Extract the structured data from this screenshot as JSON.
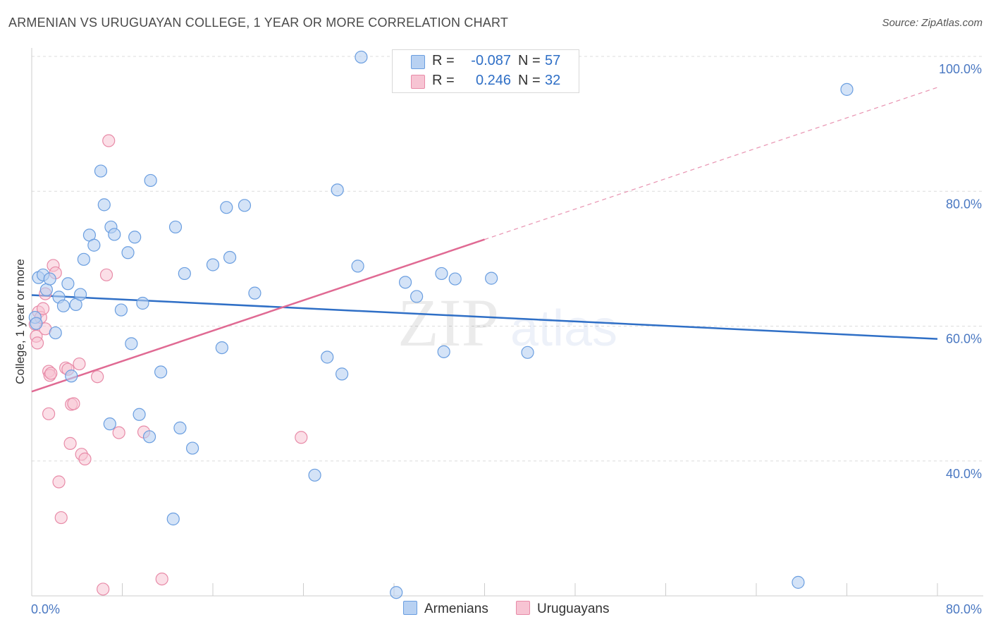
{
  "title": "ARMENIAN VS URUGUAYAN COLLEGE, 1 YEAR OR MORE CORRELATION CHART",
  "source": "Source: ZipAtlas.com",
  "watermark": {
    "zip": "ZIP",
    "atlas": "atlas"
  },
  "legend": {
    "r_label": "R =",
    "n_label": "N =",
    "armenians": {
      "r": "-0.087",
      "n": "57"
    },
    "uruguayans": {
      "r": "0.246",
      "n": "32"
    }
  },
  "colors": {
    "armenians_fill": "#b8d1f2",
    "armenians_stroke": "#6a9ee0",
    "armenians_line": "#2f6fc6",
    "uruguayans_fill": "#f7c4d3",
    "uruguayans_stroke": "#e88ba8",
    "uruguayans_line": "#e06a93",
    "tick_label": "#4a78c2"
  },
  "chart_data": {
    "type": "scatter",
    "title": "ARMENIAN VS URUGUAYAN COLLEGE, 1 YEAR OR MORE CORRELATION CHART",
    "xlabel": "",
    "ylabel": "College, 1 year or more",
    "xlim": [
      0,
      80
    ],
    "ylim": [
      20,
      100
    ],
    "x_tick_labels": [
      "0.0%",
      "80.0%"
    ],
    "y_ticks": [
      40,
      60,
      80,
      100
    ],
    "y_tick_labels": [
      "40.0%",
      "60.0%",
      "80.0%",
      "100.0%"
    ],
    "legend_entries": [
      "Armenians",
      "Uruguayans"
    ],
    "series": [
      {
        "name": "Armenians",
        "r": -0.087,
        "n": 57,
        "trend": {
          "x": [
            0,
            80
          ],
          "y": [
            64.6,
            58.1
          ],
          "dashed_from": null
        },
        "points": [
          [
            0.3,
            61.3
          ],
          [
            0.4,
            60.4
          ],
          [
            0.6,
            67.2
          ],
          [
            1.0,
            67.6
          ],
          [
            1.3,
            65.4
          ],
          [
            1.6,
            67.0
          ],
          [
            2.1,
            59.0
          ],
          [
            2.4,
            64.3
          ],
          [
            2.8,
            63.0
          ],
          [
            3.2,
            66.3
          ],
          [
            3.5,
            52.6
          ],
          [
            3.9,
            63.2
          ],
          [
            4.3,
            64.7
          ],
          [
            4.6,
            69.9
          ],
          [
            5.1,
            73.5
          ],
          [
            5.5,
            72.0
          ],
          [
            6.1,
            83.0
          ],
          [
            6.4,
            78.0
          ],
          [
            6.9,
            45.5
          ],
          [
            7.0,
            74.7
          ],
          [
            7.3,
            73.6
          ],
          [
            7.9,
            62.4
          ],
          [
            8.5,
            70.9
          ],
          [
            8.8,
            57.4
          ],
          [
            9.1,
            73.2
          ],
          [
            9.5,
            46.9
          ],
          [
            9.8,
            63.4
          ],
          [
            10.4,
            43.6
          ],
          [
            10.5,
            81.6
          ],
          [
            11.4,
            53.2
          ],
          [
            12.7,
            74.7
          ],
          [
            13.1,
            44.9
          ],
          [
            13.5,
            67.8
          ],
          [
            14.2,
            41.9
          ],
          [
            12.5,
            31.4
          ],
          [
            16.0,
            69.1
          ],
          [
            16.8,
            56.8
          ],
          [
            17.2,
            77.6
          ],
          [
            17.5,
            70.2
          ],
          [
            18.8,
            77.9
          ],
          [
            19.7,
            64.9
          ],
          [
            25.0,
            37.9
          ],
          [
            26.1,
            55.4
          ],
          [
            27.0,
            80.2
          ],
          [
            27.4,
            52.9
          ],
          [
            28.8,
            68.9
          ],
          [
            29.1,
            99.9
          ],
          [
            32.2,
            20.5
          ],
          [
            33.0,
            66.5
          ],
          [
            34.0,
            64.4
          ],
          [
            36.2,
            67.8
          ],
          [
            36.4,
            56.2
          ],
          [
            37.4,
            67.0
          ],
          [
            40.6,
            67.1
          ],
          [
            43.8,
            56.1
          ],
          [
            67.7,
            22.0
          ],
          [
            72.0,
            95.1
          ]
        ]
      },
      {
        "name": "Uruguayans",
        "r": 0.246,
        "n": 32,
        "trend": {
          "x": [
            0,
            80
          ],
          "y": [
            50.3,
            95.4
          ],
          "dashed_from": 40
        },
        "points": [
          [
            0.3,
            60.3
          ],
          [
            0.4,
            58.5
          ],
          [
            0.5,
            57.5
          ],
          [
            0.6,
            62.1
          ],
          [
            0.8,
            61.3
          ],
          [
            1.0,
            62.6
          ],
          [
            1.2,
            64.8
          ],
          [
            1.5,
            53.3
          ],
          [
            1.6,
            52.7
          ],
          [
            1.5,
            47.0
          ],
          [
            1.7,
            53.0
          ],
          [
            1.9,
            69.0
          ],
          [
            2.1,
            67.9
          ],
          [
            2.6,
            31.6
          ],
          [
            2.4,
            36.9
          ],
          [
            3.0,
            53.8
          ],
          [
            3.2,
            53.6
          ],
          [
            3.4,
            42.6
          ],
          [
            3.5,
            48.4
          ],
          [
            3.7,
            48.5
          ],
          [
            4.2,
            54.4
          ],
          [
            4.4,
            41.0
          ],
          [
            4.7,
            40.3
          ],
          [
            5.8,
            52.5
          ],
          [
            6.3,
            21.0
          ],
          [
            6.6,
            67.6
          ],
          [
            6.8,
            87.5
          ],
          [
            7.7,
            44.2
          ],
          [
            9.9,
            44.3
          ],
          [
            11.5,
            22.5
          ],
          [
            23.8,
            43.5
          ],
          [
            1.2,
            59.6
          ]
        ]
      }
    ]
  }
}
